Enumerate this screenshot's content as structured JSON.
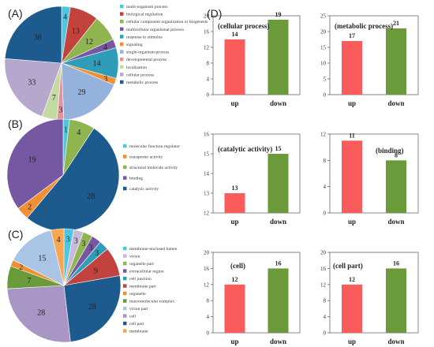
{
  "panels": {
    "A": "(A)",
    "B": "(B)",
    "C": "(C)",
    "D": "(D)"
  },
  "colors": {
    "light_blue": "#4fc6df",
    "red": "#c2423d",
    "green": "#8fb550",
    "purple": "#7558a1",
    "teal": "#2f9db7",
    "orange": "#f08f33",
    "periwinkle": "#94b2dc",
    "pink": "#e2939a",
    "pale_green": "#c5d9a3",
    "lavender": "#b6a7cd",
    "dark_blue": "#1d5b8f",
    "up_bar": "#fa5c5c",
    "down_bar": "#6a9a3a"
  },
  "chart_data": [
    {
      "type": "pie",
      "panel": "(A)",
      "legend": [
        "multi-organism process",
        "biological regulation",
        "cellular component organization or biogenesis",
        "multicellular organismal process",
        "response to stimulus",
        "signaling",
        "single-organism process",
        "developmental process",
        "localization",
        "cellular process",
        "metabolic process"
      ],
      "slices": [
        {
          "label": "multi-organism process",
          "value": 4,
          "color": "#4fc6df"
        },
        {
          "label": "biological regulation",
          "value": 13,
          "color": "#c2423d"
        },
        {
          "label": "cellular component organization or biogenesis",
          "value": 12,
          "color": "#8fb550"
        },
        {
          "label": "multicellular organismal process",
          "value": 4,
          "color": "#7558a1"
        },
        {
          "label": "response to stimulus",
          "value": 14,
          "color": "#2f9db7"
        },
        {
          "label": "signaling",
          "value": 3,
          "color": "#f08f33"
        },
        {
          "label": "single-organism process",
          "value": 29,
          "color": "#94b2dc"
        },
        {
          "label": "developmental process",
          "value": 3,
          "color": "#e2939a"
        },
        {
          "label": "localization",
          "value": 7,
          "color": "#c5d9a3"
        },
        {
          "label": "cellular process",
          "value": 33,
          "color": "#b6a7cd"
        },
        {
          "label": "metabolic process",
          "value": 38,
          "color": "#1d5b8f"
        }
      ]
    },
    {
      "type": "pie",
      "panel": "(B)",
      "legend": [
        "molecular function regulator",
        "transporter activity",
        "structural molecule activity",
        "binding",
        "catalytic activity"
      ],
      "slices": [
        {
          "label": "molecular function regulator",
          "value": 1,
          "color": "#4fc6df"
        },
        {
          "label": "structural molecule activity",
          "value": 4,
          "color": "#8fb550"
        },
        {
          "label": "catalytic activity",
          "value": 28,
          "color": "#1d5b8f"
        },
        {
          "label": "transporter activity",
          "value": 2,
          "color": "#f08f33"
        },
        {
          "label": "binding",
          "value": 19,
          "color": "#7558a1"
        }
      ]
    },
    {
      "type": "pie",
      "panel": "(C)",
      "legend": [
        "membrane-enclosed lumen",
        "virion",
        "organelle part",
        "extracellular region",
        "cell junction",
        "membrane part",
        "organelle",
        "macromolecular complex",
        "virion part",
        "cell",
        "cell part",
        "membrane"
      ],
      "slices": [
        {
          "label": "membrane-enclosed lumen",
          "value": 3,
          "color": "#4fc6df"
        },
        {
          "label": "virion",
          "value": 3,
          "color": "#c8b8dc"
        },
        {
          "label": "organelle part",
          "value": 3,
          "color": "#8fb550"
        },
        {
          "label": "extracellular region",
          "value": 3,
          "color": "#7558a1"
        },
        {
          "label": "cell junction",
          "value": 3,
          "color": "#2f9db7"
        },
        {
          "label": "membrane part",
          "value": 9,
          "color": "#c2423d"
        },
        {
          "label": "cell part",
          "value": 28,
          "color": "#1d5b8f"
        },
        {
          "label": "cell",
          "value": 28,
          "color": "#a896c4"
        },
        {
          "label": "macromolecular complex",
          "value": 7,
          "color": "#6a9a3a"
        },
        {
          "label": "organelle",
          "value": 2,
          "color": "#f08f33"
        },
        {
          "label": "virion part",
          "value": 15,
          "color": "#a9c4e4"
        },
        {
          "label": "membrane",
          "value": 4,
          "color": "#f5a851"
        }
      ]
    },
    {
      "type": "bar",
      "title": "(cellular process)",
      "categories": [
        "up",
        "down"
      ],
      "values": [
        14,
        19
      ],
      "ylim": [
        0,
        20
      ],
      "yticks": [
        0,
        4,
        8,
        12,
        16,
        20
      ]
    },
    {
      "type": "bar",
      "title": "(metabolic process)",
      "categories": [
        "up",
        "down"
      ],
      "values": [
        17,
        21
      ],
      "ylim": [
        0,
        25
      ],
      "yticks": [
        0,
        5,
        10,
        15,
        20,
        25
      ]
    },
    {
      "type": "bar",
      "title": "(catalytic activity)",
      "categories": [
        "up",
        "down"
      ],
      "values": [
        13,
        15
      ],
      "ylim": [
        12,
        16
      ],
      "yticks": [
        12,
        13,
        14,
        15,
        16
      ]
    },
    {
      "type": "bar",
      "title": "(binding)",
      "categories": [
        "up",
        "down"
      ],
      "values": [
        11,
        8
      ],
      "ylim": [
        0,
        12
      ],
      "yticks": [
        0,
        4,
        8,
        12
      ]
    },
    {
      "type": "bar",
      "title": "(cell)",
      "categories": [
        "up",
        "down"
      ],
      "values": [
        12,
        16
      ],
      "ylim": [
        0,
        20
      ],
      "yticks": [
        0,
        4,
        8,
        12,
        16,
        20
      ]
    },
    {
      "type": "bar",
      "title": "(cell part)",
      "categories": [
        "up",
        "down"
      ],
      "values": [
        12,
        16
      ],
      "ylim": [
        0,
        20
      ],
      "yticks": [
        0,
        4,
        8,
        12,
        16,
        20
      ]
    }
  ]
}
